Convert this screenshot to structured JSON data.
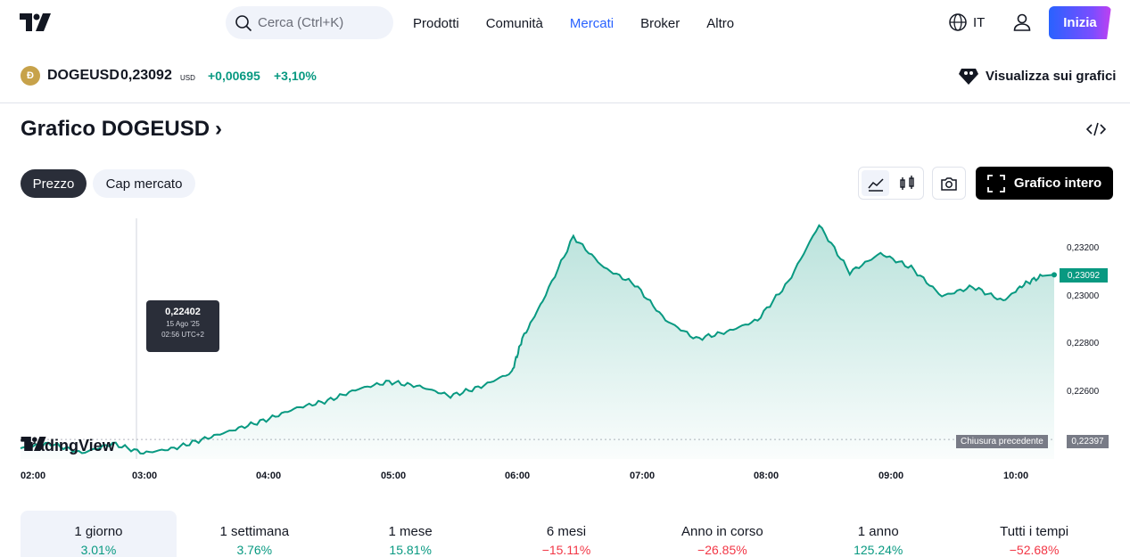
{
  "header": {
    "search_placeholder": "Cerca (Ctrl+K)",
    "nav": [
      {
        "label": "Prodotti",
        "active": false
      },
      {
        "label": "Comunità",
        "active": false
      },
      {
        "label": "Mercati",
        "active": true
      },
      {
        "label": "Broker",
        "active": false
      },
      {
        "label": "Altro",
        "active": false
      }
    ],
    "language": "IT",
    "cta": "Inizia"
  },
  "ticker": {
    "symbol": "DOGEUSD",
    "price": "0,23092",
    "currency": "USD",
    "change": "+0,00695",
    "change_pct": "+3,10%",
    "view_on_charts": "Visualizza sui grafici"
  },
  "page": {
    "title": "Grafico DOGEUSD",
    "tabs": [
      "Prezzo",
      "Cap mercato"
    ],
    "full_chart": "Grafico intero"
  },
  "colors": {
    "up": "#089981",
    "down": "#f23645",
    "accent": "#2962ff"
  },
  "chart_data": {
    "type": "area",
    "x": [
      "02:00",
      "02:15",
      "02:30",
      "02:45",
      "03:00",
      "03:15",
      "03:30",
      "03:45",
      "04:00",
      "04:15",
      "04:30",
      "04:45",
      "05:00",
      "05:15",
      "05:30",
      "05:45",
      "06:00",
      "06:05",
      "06:15",
      "06:30",
      "06:45",
      "07:00",
      "07:15",
      "07:30",
      "07:45",
      "08:00",
      "08:15",
      "08:30",
      "08:45",
      "09:00",
      "09:15",
      "09:30",
      "09:45",
      "10:00",
      "10:10",
      "10:20"
    ],
    "y": [
      0.2236,
      0.2238,
      0.2234,
      0.2238,
      0.2234,
      0.2236,
      0.224,
      0.2244,
      0.2248,
      0.2253,
      0.2256,
      0.2261,
      0.2264,
      0.2262,
      0.2258,
      0.2262,
      0.2268,
      0.2282,
      0.2298,
      0.2325,
      0.2312,
      0.2305,
      0.229,
      0.2282,
      0.2285,
      0.229,
      0.2306,
      0.233,
      0.231,
      0.2318,
      0.2312,
      0.23,
      0.2304,
      0.2298,
      0.2305,
      0.2309
    ],
    "last_value": "0,23092",
    "prev_close": 0.22397,
    "prev_close_label": "Chiusura precedente",
    "prev_close_value": "0,22397",
    "y_ticks": [
      "0,23200",
      "0,23000",
      "0,22800",
      "0,22600"
    ],
    "x_ticks": [
      "02:00",
      "03:00",
      "04:00",
      "05:00",
      "06:00",
      "07:00",
      "08:00",
      "09:00",
      "10:00"
    ],
    "tooltip": {
      "price": "0,22402",
      "date": "15 Ago '25",
      "time": "02:56 UTC+2"
    },
    "watermark": "TradingView",
    "grid": false
  },
  "periods": [
    {
      "label": "1 giorno",
      "value": "3.01%",
      "dir": "pos"
    },
    {
      "label": "1 settimana",
      "value": "3.76%",
      "dir": "pos"
    },
    {
      "label": "1 mese",
      "value": "15.81%",
      "dir": "pos"
    },
    {
      "label": "6 mesi",
      "value": "−15.11%",
      "dir": "neg"
    },
    {
      "label": "Anno in corso",
      "value": "−26.85%",
      "dir": "neg"
    },
    {
      "label": "1 anno",
      "value": "125.24%",
      "dir": "pos"
    },
    {
      "label": "Tutti i tempi",
      "value": "−52.68%",
      "dir": "neg"
    }
  ]
}
